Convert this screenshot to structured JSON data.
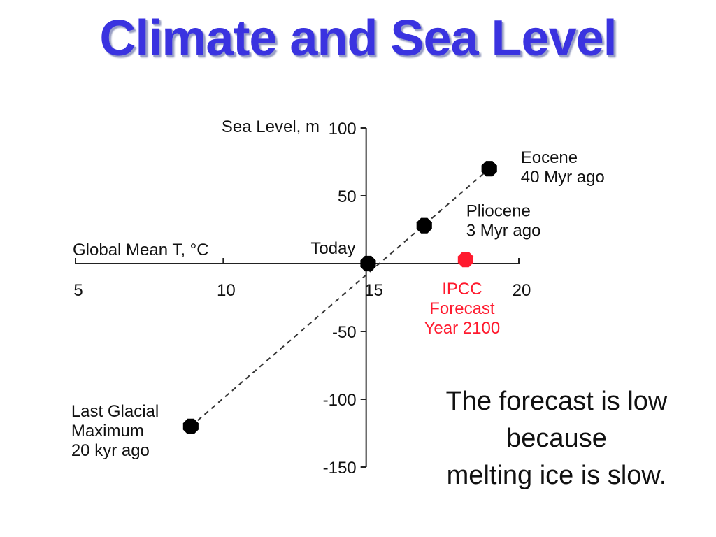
{
  "slide": {
    "title": "Climate and Sea Level",
    "note_lines": [
      "The forecast is low",
      "because",
      "melting ice is slow."
    ]
  },
  "chart_data": {
    "type": "scatter",
    "xlabel": "Global Mean T, °C",
    "ylabel": "Sea Level, m",
    "xlim": [
      5,
      20
    ],
    "ylim": [
      -150,
      100
    ],
    "xticks": [
      "5",
      "10",
      "15",
      "20"
    ],
    "yticks": [
      "100",
      "50",
      "-50",
      "-100",
      "-150"
    ],
    "grid": false,
    "points": [
      {
        "x": 14.9,
        "y": 0,
        "label_lines": [
          "Today"
        ],
        "color": "#000000"
      },
      {
        "x": 16.8,
        "y": 28,
        "label_lines": [
          "Pliocene",
          "3 Myr ago"
        ],
        "color": "#000000"
      },
      {
        "x": 19.0,
        "y": 70,
        "label_lines": [
          "Eocene",
          "40 Myr ago"
        ],
        "color": "#000000"
      },
      {
        "x": 8.9,
        "y": -120,
        "label_lines": [
          "Last Glacial",
          "Maximum",
          "20 kyr ago"
        ],
        "color": "#000000"
      },
      {
        "x": 18.2,
        "y": 3,
        "label_lines": [
          "IPCC",
          "Forecast",
          "Year 2100"
        ],
        "color": "#ff1a2e"
      }
    ],
    "trend_line": {
      "style": "dashed",
      "from": {
        "x": 8.9,
        "y": -120
      },
      "to": {
        "x": 19.0,
        "y": 70
      }
    }
  }
}
